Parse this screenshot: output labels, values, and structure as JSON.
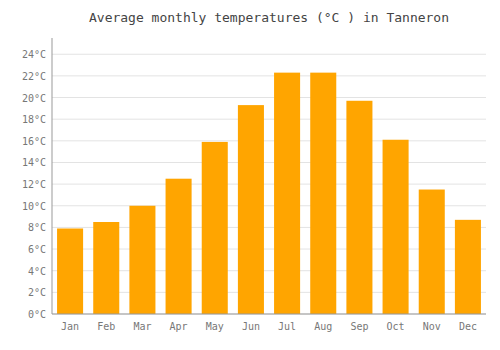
{
  "chart_data": {
    "type": "bar",
    "title": "Average monthly temperatures (°C ) in Tanneron",
    "categories": [
      "Jan",
      "Feb",
      "Mar",
      "Apr",
      "May",
      "Jun",
      "Jul",
      "Aug",
      "Sep",
      "Oct",
      "Nov",
      "Dec"
    ],
    "values": [
      7.9,
      8.5,
      10.0,
      12.5,
      15.9,
      19.3,
      22.3,
      22.3,
      19.7,
      16.1,
      11.5,
      8.7
    ],
    "color": "#FFA500",
    "ylim": [
      0,
      25.5
    ],
    "yticks": [
      {
        "value": 0,
        "label": "0°C"
      },
      {
        "value": 2,
        "label": "2°C"
      },
      {
        "value": 4,
        "label": "4°C"
      },
      {
        "value": 6,
        "label": "6°C"
      },
      {
        "value": 8,
        "label": "8°C"
      },
      {
        "value": 10,
        "label": "10°C"
      },
      {
        "value": 12,
        "label": "12°C"
      },
      {
        "value": 14,
        "label": "14°C"
      },
      {
        "value": 16,
        "label": "16°C"
      },
      {
        "value": 18,
        "label": "18°C"
      },
      {
        "value": 20,
        "label": "20°C"
      },
      {
        "value": 22,
        "label": "22°C"
      },
      {
        "value": 24,
        "label": "24°C"
      }
    ],
    "grid": true
  }
}
